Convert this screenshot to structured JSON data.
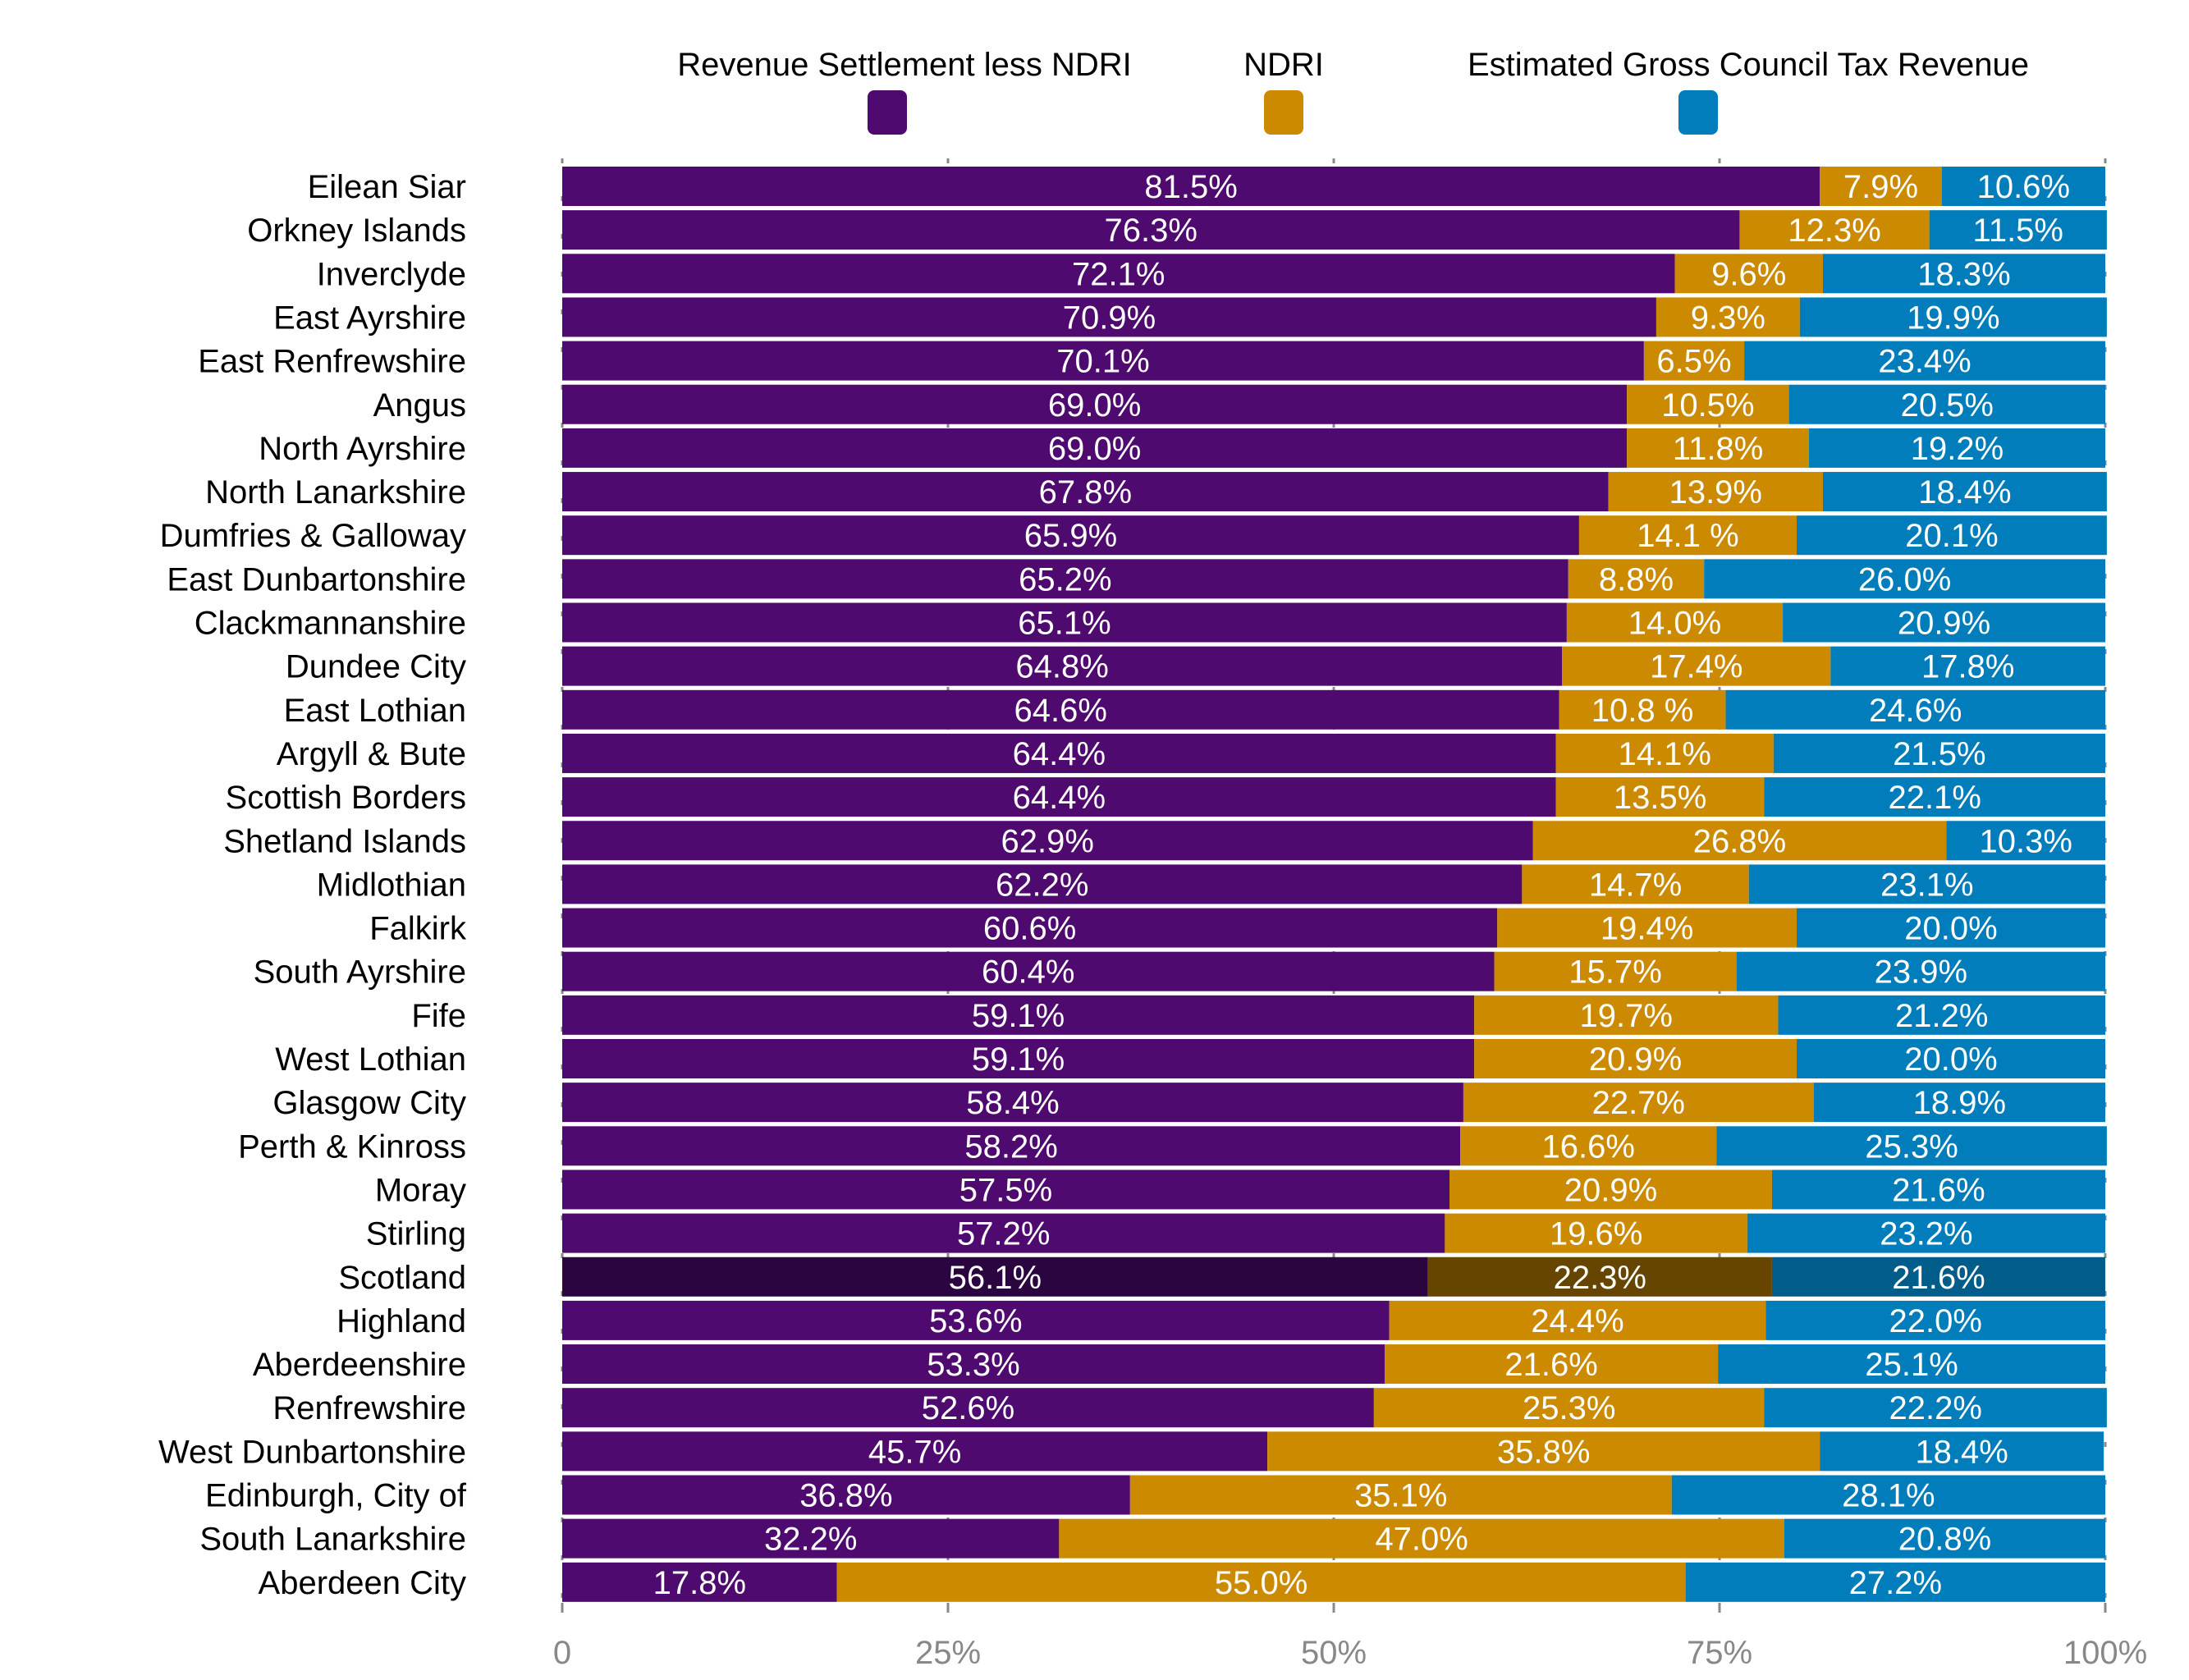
{
  "chart_data": {
    "type": "bar",
    "orientation": "horizontal",
    "stacked": "percent",
    "title": "",
    "xlabel": "",
    "ylabel": "",
    "xlim": [
      0,
      100
    ],
    "x_ticks": [
      "0",
      "25%",
      "50%",
      "75%",
      "100%"
    ],
    "x_tick_values": [
      0,
      25,
      50,
      75,
      100
    ],
    "grid": true,
    "legend_position": "top",
    "categories": [
      "Eilean Siar",
      "Orkney Islands",
      "Inverclyde",
      "East Ayrshire",
      "East Renfrewshire",
      "Angus",
      "North Ayrshire",
      "North Lanarkshire",
      "Dumfries & Galloway",
      "East Dunbartonshire",
      "Clackmannanshire",
      "Dundee City",
      "East Lothian",
      "Argyll & Bute",
      "Scottish Borders",
      "Shetland Islands",
      "Midlothian",
      "Falkirk",
      "South Ayrshire",
      "Fife",
      "West Lothian",
      "Glasgow City",
      "Perth & Kinross",
      "Moray",
      "Stirling",
      "Scotland",
      "Highland",
      "Aberdeenshire",
      "Renfrewshire",
      "West Dunbartonshire",
      "Edinburgh, City of",
      "South Lanarkshire",
      "Aberdeen City"
    ],
    "highlight_category": "Scotland",
    "series": [
      {
        "name": "Revenue Settlement less NDRI",
        "color": "#4f0a6f",
        "highlight_color": "#2a0540",
        "values": [
          81.5,
          76.3,
          72.1,
          70.9,
          70.1,
          69.0,
          69.0,
          67.8,
          65.9,
          65.2,
          65.1,
          64.8,
          64.6,
          64.4,
          64.4,
          62.9,
          62.2,
          60.6,
          60.4,
          59.1,
          59.1,
          58.4,
          58.2,
          57.5,
          57.2,
          56.1,
          53.6,
          53.3,
          52.6,
          45.7,
          36.8,
          32.2,
          17.8
        ],
        "labels": [
          "81.5%",
          "76.3%",
          "72.1%",
          "70.9%",
          "70.1%",
          "69.0%",
          "69.0%",
          "67.8%",
          "65.9%",
          "65.2%",
          "65.1%",
          "64.8%",
          "64.6%",
          "64.4%",
          "64.4%",
          "62.9%",
          "62.2%",
          "60.6%",
          "60.4%",
          "59.1%",
          "59.1%",
          "58.4%",
          "58.2%",
          "57.5%",
          "57.2%",
          "56.1%",
          "53.6%",
          "53.3%",
          "52.6%",
          "45.7%",
          "36.8%",
          "32.2%",
          "17.8%"
        ]
      },
      {
        "name": "NDRI",
        "color": "#cc8a00",
        "highlight_color": "#664500",
        "values": [
          7.9,
          12.3,
          9.6,
          9.3,
          6.5,
          10.5,
          11.8,
          13.9,
          14.1,
          8.8,
          14.0,
          17.4,
          10.8,
          14.1,
          13.5,
          26.8,
          14.7,
          19.4,
          15.7,
          19.7,
          20.9,
          22.7,
          16.6,
          20.9,
          19.6,
          22.3,
          24.4,
          21.6,
          25.3,
          35.8,
          35.1,
          47.0,
          55.0
        ],
        "labels": [
          "7.9%",
          "12.3%",
          "9.6%",
          "9.3%",
          "6.5%",
          "10.5%",
          "11.8%",
          "13.9%",
          "14.1 %",
          "8.8%",
          "14.0%",
          "17.4%",
          "10.8 %",
          "14.1%",
          "13.5%",
          "26.8%",
          "14.7%",
          "19.4%",
          "15.7%",
          "19.7%",
          "20.9%",
          "22.7%",
          "16.6%",
          "20.9%",
          "19.6%",
          "22.3%",
          "24.4%",
          "21.6%",
          "25.3%",
          "35.8%",
          "35.1%",
          "47.0%",
          "55.0%"
        ]
      },
      {
        "name": "Estimated Gross Council Tax Revenue",
        "color": "#007dba",
        "highlight_color": "#005c88",
        "values": [
          10.6,
          11.5,
          18.3,
          19.9,
          23.4,
          20.5,
          19.2,
          18.4,
          20.1,
          26.0,
          20.9,
          17.8,
          24.6,
          21.5,
          22.1,
          10.3,
          23.1,
          20.0,
          23.9,
          21.2,
          20.0,
          18.9,
          25.3,
          21.6,
          23.2,
          21.6,
          22.0,
          25.1,
          22.2,
          18.4,
          28.1,
          20.8,
          27.2
        ],
        "labels": [
          "10.6%",
          "11.5%",
          "18.3%",
          "19.9%",
          "23.4%",
          "20.5%",
          "19.2%",
          "18.4%",
          "20.1%",
          "26.0%",
          "20.9%",
          "17.8%",
          "24.6%",
          "21.5%",
          "22.1%",
          "10.3%",
          "23.1%",
          "20.0%",
          "23.9%",
          "21.2%",
          "20.0%",
          "18.9%",
          "25.3%",
          "21.6%",
          "23.2%",
          "21.6%",
          "22.0%",
          "25.1%",
          "22.2%",
          "18.4%",
          "28.1%",
          "20.8%",
          "27.2%"
        ]
      }
    ]
  }
}
